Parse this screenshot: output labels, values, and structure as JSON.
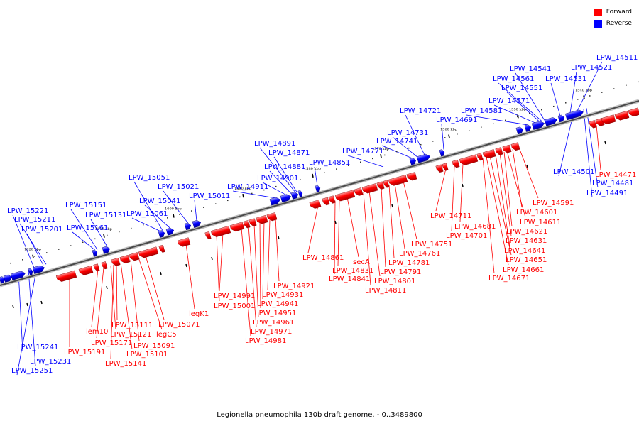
{
  "legend": {
    "forward": {
      "label": "Forward",
      "color": "#ff0000"
    },
    "reverse": {
      "label": "Reverse",
      "color": "#0000ff"
    }
  },
  "caption": "Legionella pneumophila 130b draft genome. - 0..3489800",
  "scale_ticks": [
    "1540 kbp",
    "1550 kbp",
    "1560 kbp",
    "1570 kbp",
    "1580 kbp",
    "1590 kbp",
    "1600 kbp",
    "1610 kbp",
    "1620 kbp"
  ],
  "reverse_genes": [
    "LPW_14511",
    "LPW_14521",
    "LPW_14531",
    "LPW_14541",
    "LPW_14551",
    "LPW_14561",
    "LPW_14571",
    "LPW_14581",
    "LPW_14691",
    "LPW_14721",
    "LPW_14731",
    "LPW_14741",
    "LPW_14771",
    "LPW_14851",
    "LPW_14871",
    "LPW_14881",
    "LPW_14891",
    "LPW_14901",
    "LPW_14911",
    "LPW_15011",
    "LPW_15021",
    "LPW_15041",
    "LPW_15051",
    "LPW_15061",
    "LPW_15131",
    "LPW_15151",
    "LPW_15161",
    "LPW_15201",
    "LPW_15211",
    "LPW_15221",
    "LPW_14501",
    "LPW_14481",
    "LPW_14491",
    "LPW_15231",
    "LPW_15241",
    "LPW_15251"
  ],
  "forward_genes": [
    "LPW_14471",
    "LPW_14591",
    "LPW_14601",
    "LPW_14611",
    "LPW_14621",
    "LPW_14631",
    "LPW_14641",
    "LPW_14651",
    "LPW_14661",
    "LPW_14671",
    "LPW_14681",
    "LPW_14701",
    "LPW_14711",
    "LPW_14751",
    "LPW_14761",
    "LPW_14781",
    "LPW_14791",
    "LPW_14801",
    "LPW_14811",
    "secA",
    "LPW_14831",
    "LPW_14841",
    "LPW_14861",
    "LPW_14921",
    "LPW_14931",
    "LPW_14941",
    "LPW_14951",
    "LPW_14961",
    "LPW_14971",
    "LPW_14981",
    "LPW_14991",
    "LPW_15001",
    "legK1",
    "LPW_15071",
    "legC5",
    "LPW_15091",
    "LPW_15101",
    "LPW_15111",
    "LPW_15121",
    "LPW_15141",
    "LPW_15171",
    "lem10",
    "LPW_15191"
  ]
}
